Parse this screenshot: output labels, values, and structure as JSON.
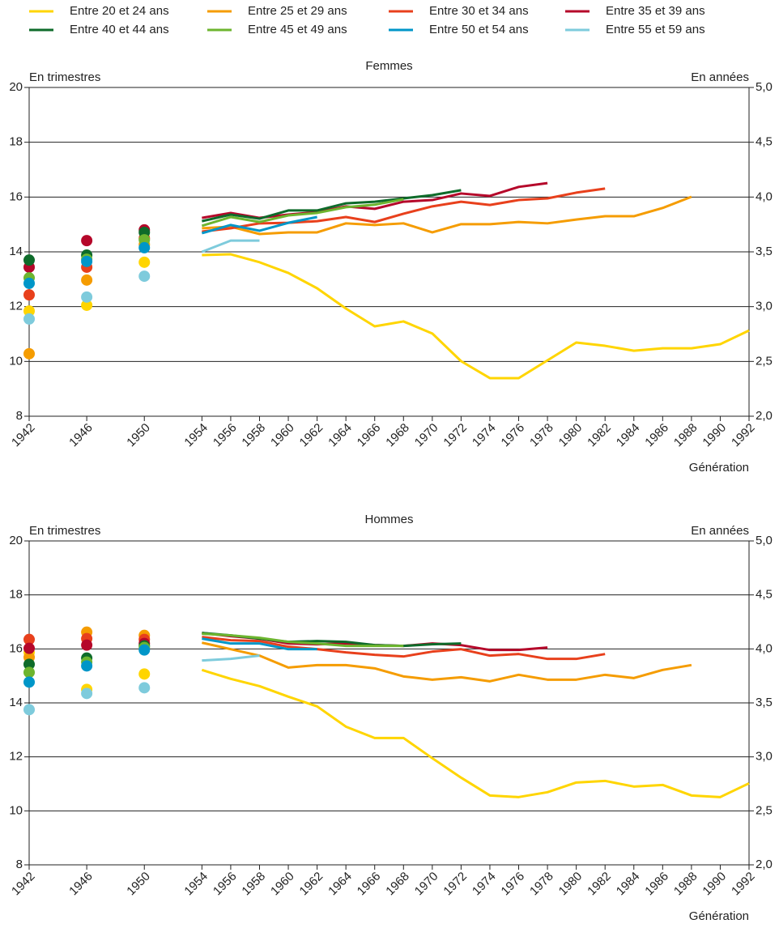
{
  "legend": [
    {
      "name": "Entre 20 et 24 ans",
      "color": "#ffd500"
    },
    {
      "name": "Entre 25 et 29 ans",
      "color": "#f59c00"
    },
    {
      "name": "Entre 30 et 34 ans",
      "color": "#e8401c"
    },
    {
      "name": "Entre 35 et 39 ans",
      "color": "#b5072a"
    },
    {
      "name": "Entre 40 et 44 ans",
      "color": "#0e6b2a"
    },
    {
      "name": "Entre 45 et 49 ans",
      "color": "#6db52f"
    },
    {
      "name": "Entre 50 et 54 ans",
      "color": "#0096c8"
    },
    {
      "name": "Entre 55 et 59 ans",
      "color": "#7ecbdc"
    }
  ],
  "chart_data": [
    {
      "type": "line",
      "title": "Femmes",
      "y_label": "En trimestres",
      "y2_label": "En années",
      "x_label": "Génération",
      "xlim": [
        1942,
        1992
      ],
      "ylim": [
        8,
        20
      ],
      "y2lim": [
        2,
        5
      ],
      "xticks": [
        1942,
        1946,
        1950,
        1954,
        1956,
        1958,
        1960,
        1962,
        1964,
        1966,
        1968,
        1970,
        1972,
        1974,
        1976,
        1978,
        1980,
        1982,
        1984,
        1986,
        1988,
        1990,
        1992
      ],
      "yticks": [
        8,
        10,
        12,
        14,
        16,
        18,
        20
      ],
      "y2ticks": [
        {
          "value": 2,
          "label": "2,0"
        },
        {
          "value": 2.5,
          "label": "2,5"
        },
        {
          "value": 3,
          "label": "3,0"
        },
        {
          "value": 3.5,
          "label": "3,5"
        },
        {
          "value": 4,
          "label": "4,0"
        },
        {
          "value": 4.5,
          "label": "4,5"
        },
        {
          "value": 5,
          "label": "5,0"
        }
      ],
      "grid": true,
      "projection_start": 1986,
      "dot_x": [
        1942,
        1946,
        1950
      ],
      "x": [
        1954,
        1956,
        1958,
        1960,
        1962,
        1964,
        1966,
        1968,
        1970,
        1972,
        1974,
        1976,
        1978,
        1980,
        1982,
        1984,
        1986,
        1988,
        1990,
        1992
      ],
      "series": [
        {
          "color": "#ffd500",
          "dot_values": [
            11.84,
            12.05,
            13.62
          ],
          "values": [
            13.88,
            13.91,
            13.62,
            13.23,
            12.67,
            11.93,
            11.28,
            11.46,
            11.02,
            10.01,
            9.39,
            9.39,
            10.04,
            10.69,
            10.57,
            10.39,
            10.48,
            10.48,
            10.63,
            11.13
          ]
        },
        {
          "color": "#f59c00",
          "dot_values": [
            10.28,
            12.97,
            14.27
          ],
          "values": [
            14.86,
            14.92,
            14.65,
            14.71,
            14.71,
            15.04,
            14.98,
            15.04,
            14.71,
            15.01,
            15.01,
            15.09,
            15.04,
            15.18,
            15.3,
            15.3,
            15.6,
            16.01,
            null,
            null
          ]
        },
        {
          "color": "#e8401c",
          "dot_values": [
            12.43,
            13.44,
            14.5
          ],
          "values": [
            14.74,
            14.86,
            15.04,
            15.06,
            15.12,
            15.27,
            15.09,
            15.39,
            15.66,
            15.83,
            15.71,
            15.89,
            15.95,
            16.16,
            16.31,
            null,
            null,
            null,
            null,
            null
          ]
        },
        {
          "color": "#b5072a",
          "dot_values": [
            13.44,
            14.41,
            14.8
          ],
          "values": [
            15.24,
            15.42,
            15.24,
            15.36,
            15.45,
            15.66,
            15.57,
            15.83,
            15.89,
            16.13,
            16.04,
            16.37,
            16.51,
            null,
            null,
            null,
            null,
            null,
            null,
            null
          ]
        },
        {
          "color": "#0e6b2a",
          "dot_values": [
            13.7,
            13.88,
            14.71
          ],
          "values": [
            15.12,
            15.36,
            15.21,
            15.51,
            15.51,
            15.77,
            15.83,
            15.95,
            16.07,
            16.25,
            null,
            null,
            null,
            null,
            null,
            null,
            null,
            null,
            null,
            null
          ]
        },
        {
          "color": "#6db52f",
          "dot_values": [
            13.05,
            13.73,
            14.44
          ],
          "values": [
            14.95,
            15.27,
            15.09,
            15.33,
            15.42,
            15.63,
            15.72,
            15.92,
            null,
            null,
            null,
            null,
            null,
            null,
            null,
            null,
            null,
            null,
            null,
            null
          ]
        },
        {
          "color": "#0096c8",
          "dot_values": [
            12.85,
            13.65,
            14.15
          ],
          "values": [
            14.68,
            14.98,
            14.77,
            15.06,
            15.27,
            null,
            null,
            null,
            null,
            null,
            null,
            null,
            null,
            null,
            null,
            null,
            null,
            null,
            null,
            null
          ]
        },
        {
          "color": "#7ecbdc",
          "dot_values": [
            11.55,
            12.35,
            13.11
          ],
          "values": [
            14.0,
            14.41,
            14.41,
            null,
            null,
            null,
            null,
            null,
            null,
            null,
            null,
            null,
            null,
            null,
            null,
            null,
            null,
            null,
            null,
            null
          ]
        }
      ]
    },
    {
      "type": "line",
      "title": "Hommes",
      "y_label": "En trimestres",
      "y2_label": "En années",
      "x_label": "Génération",
      "xlim": [
        1942,
        1992
      ],
      "ylim": [
        8,
        20
      ],
      "y2lim": [
        2,
        5
      ],
      "xticks": [
        1942,
        1946,
        1950,
        1954,
        1956,
        1958,
        1960,
        1962,
        1964,
        1966,
        1968,
        1970,
        1972,
        1974,
        1976,
        1978,
        1980,
        1982,
        1984,
        1986,
        1988,
        1990,
        1992
      ],
      "yticks": [
        8,
        10,
        12,
        14,
        16,
        18,
        20
      ],
      "y2ticks": [
        {
          "value": 2,
          "label": "2,0"
        },
        {
          "value": 2.5,
          "label": "2,5"
        },
        {
          "value": 3,
          "label": "3,0"
        },
        {
          "value": 3.5,
          "label": "3,5"
        },
        {
          "value": 4,
          "label": "4,0"
        },
        {
          "value": 4.5,
          "label": "4,5"
        },
        {
          "value": 5,
          "label": "5,0"
        }
      ],
      "grid": true,
      "projection_start": 1986,
      "dot_x": [
        1942,
        1946,
        1950
      ],
      "x": [
        1954,
        1956,
        1958,
        1960,
        1962,
        1964,
        1966,
        1968,
        1970,
        1972,
        1974,
        1976,
        1978,
        1980,
        1982,
        1984,
        1986,
        1988,
        1990,
        1992
      ],
      "series": [
        {
          "color": "#ffd500",
          "dot_values": [
            15.87,
            14.5,
            15.07
          ],
          "values": [
            15.22,
            14.89,
            14.62,
            14.23,
            13.87,
            13.12,
            12.7,
            12.7,
            11.95,
            11.23,
            10.57,
            10.51,
            10.69,
            11.05,
            11.11,
            10.9,
            10.96,
            10.57,
            10.51,
            11.02
          ]
        },
        {
          "color": "#f59c00",
          "dot_values": [
            15.69,
            16.62,
            16.5
          ],
          "values": [
            16.23,
            15.99,
            15.75,
            15.31,
            15.4,
            15.4,
            15.28,
            14.98,
            14.86,
            14.95,
            14.8,
            15.04,
            14.86,
            14.86,
            15.04,
            14.92,
            15.22,
            15.4,
            null,
            null
          ]
        },
        {
          "color": "#e8401c",
          "dot_values": [
            16.35,
            16.38,
            16.35
          ],
          "values": [
            16.44,
            16.32,
            16.29,
            16.08,
            15.99,
            15.87,
            15.78,
            15.72,
            15.9,
            15.99,
            15.75,
            15.81,
            15.63,
            15.63,
            15.81,
            null,
            null,
            null,
            null,
            null
          ]
        },
        {
          "color": "#b5072a",
          "dot_values": [
            16.02,
            16.14,
            16.2
          ],
          "values": [
            16.59,
            16.47,
            16.38,
            16.2,
            16.17,
            16.2,
            16.14,
            16.11,
            16.2,
            16.14,
            15.96,
            15.96,
            16.05,
            null,
            null,
            null,
            null,
            null,
            null,
            null
          ]
        },
        {
          "color": "#0e6b2a",
          "dot_values": [
            15.43,
            15.66,
            16.11
          ],
          "values": [
            16.59,
            16.5,
            16.38,
            16.26,
            16.29,
            16.26,
            16.14,
            16.11,
            16.17,
            16.2,
            null,
            null,
            null,
            null,
            null,
            null,
            null,
            null,
            null,
            null
          ]
        },
        {
          "color": "#6db52f",
          "dot_values": [
            15.13,
            15.51,
            16.05
          ],
          "values": [
            16.56,
            16.5,
            16.41,
            16.26,
            16.2,
            16.11,
            16.11,
            16.11,
            null,
            null,
            null,
            null,
            null,
            null,
            null,
            null,
            null,
            null,
            null,
            null
          ]
        },
        {
          "color": "#0096c8",
          "dot_values": [
            14.77,
            15.37,
            15.96
          ],
          "values": [
            16.38,
            16.2,
            16.2,
            15.99,
            15.99,
            null,
            null,
            null,
            null,
            null,
            null,
            null,
            null,
            null,
            null,
            null,
            null,
            null,
            null,
            null
          ]
        },
        {
          "color": "#7ecbdc",
          "dot_values": [
            13.75,
            14.35,
            14.56
          ],
          "values": [
            15.57,
            15.63,
            15.75,
            null,
            null,
            null,
            null,
            null,
            null,
            null,
            null,
            null,
            null,
            null,
            null,
            null,
            null,
            null,
            null,
            null
          ]
        }
      ]
    }
  ]
}
